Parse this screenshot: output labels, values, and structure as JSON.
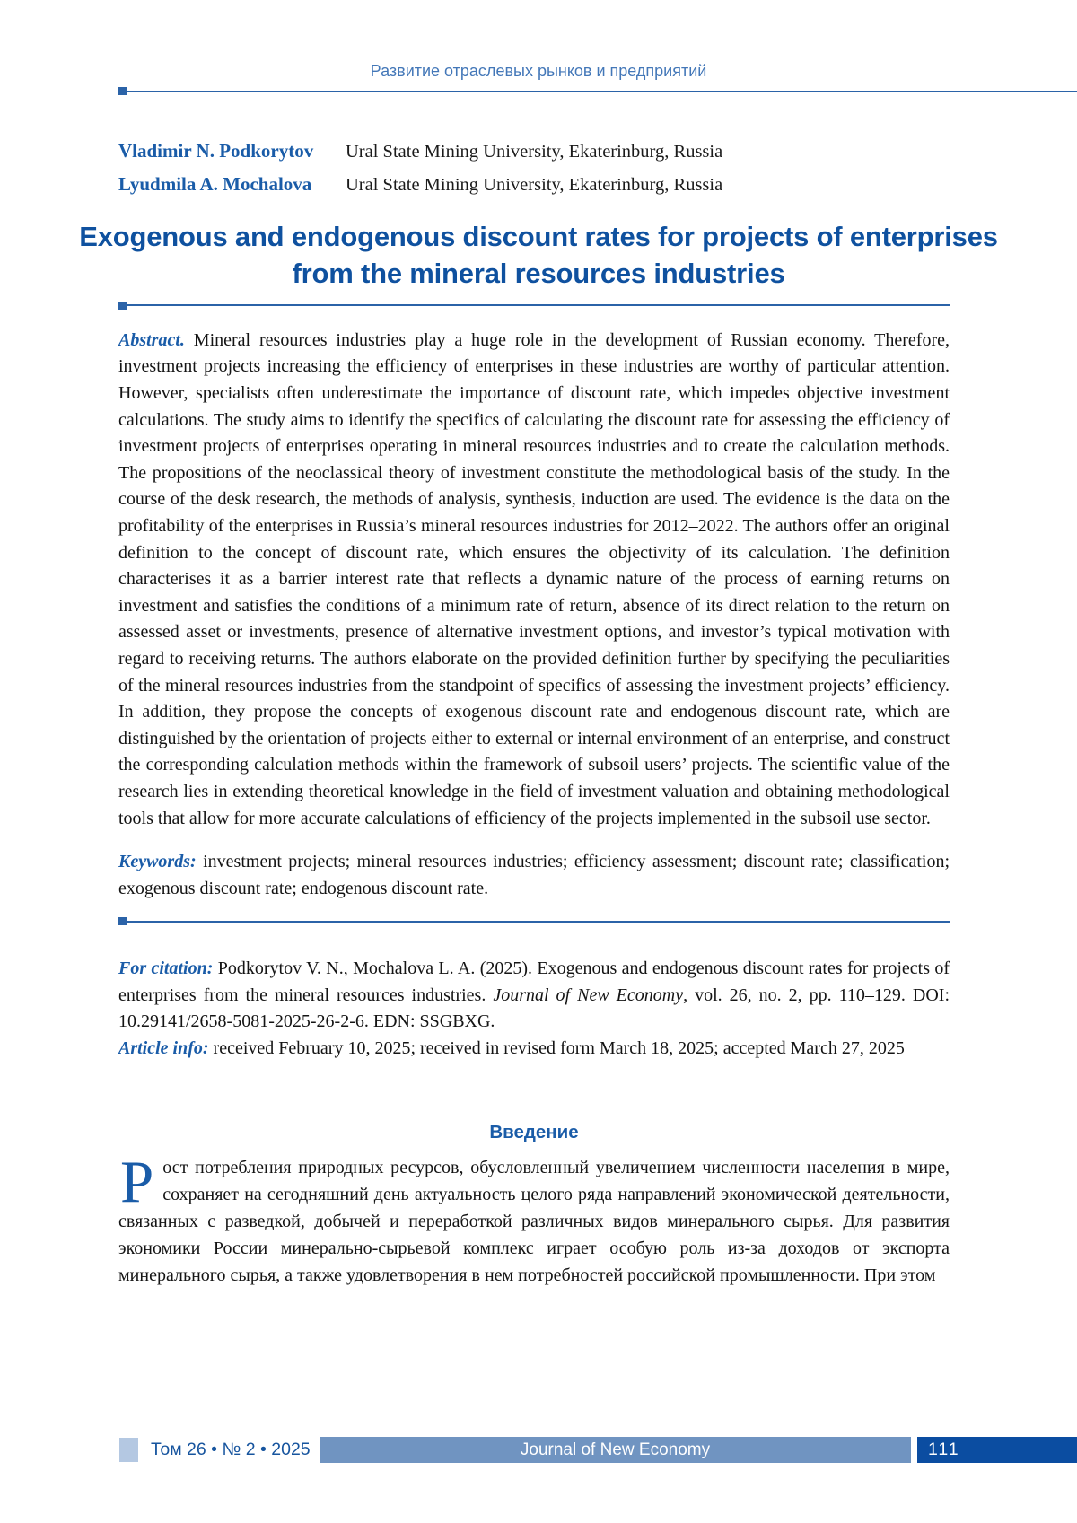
{
  "running_head": "Развитие отраслевых рынков и предприятий",
  "authors": [
    {
      "name": "Vladimir N. Podkorytov",
      "affiliation": "Ural State Mining University, Ekaterinburg, Russia"
    },
    {
      "name": "Lyudmila A. Mochalova",
      "affiliation": "Ural State Mining University, Ekaterinburg, Russia"
    }
  ],
  "title": "Exogenous and endogenous discount rates for projects of enterprises from the mineral resources industries",
  "abstract": {
    "label": "Abstract.",
    "text": "Mineral resources industries play a huge role in the development of Russian economy. Therefore, investment projects increasing the efficiency of enterprises in these industries are worthy of particular attention. However, specialists often underestimate the importance of discount rate, which impedes objective investment calculations. The study aims to identify the specifics of calculating the discount rate for assessing the efficiency of investment projects of enterprises operating in mineral resources industries and to create the calculation methods. The propositions of the neoclassical theory of investment constitute the methodological basis of the study. In the course of the desk research, the methods of analysis, synthesis, induction are used. The evidence is the data on the profitability of the enterprises in Russia’s mineral resources industries for 2012–2022. The authors offer an original definition to the concept of discount rate, which ensures the objectivity of its calculation. The definition characterises it as a barrier interest rate that reflects a dynamic nature of the process of earning returns on investment and satisfies the conditions of a minimum rate of return, absence of its direct relation to the return on assessed asset or investments, presence of alternative investment options, and investor’s typical motivation with regard to receiving returns. The authors elaborate on the provided definition further by specifying the peculiarities of the mineral resources industries from the standpoint of specifics of assessing the investment projects’ efficiency. In addition, they propose the concepts of exogenous discount rate and endogenous discount rate, which are distinguished by the orientation of projects either to external or internal environment of an enterprise, and construct the corresponding calculation methods within the framework of subsoil users’ projects. The scientific value of the research lies in extending theoretical knowledge in the field of investment valuation and obtaining methodological tools that allow for more accurate calculations of efficiency of the projects implemented in the subsoil use sector."
  },
  "keywords": {
    "label": "Keywords:",
    "text": "investment projects; mineral resources industries; efficiency assessment; discount rate; classification; exogenous discount rate; endogenous discount rate."
  },
  "citation": {
    "label": "For citation:",
    "text_before_journal": "Podkorytov V. N., Mochalova L. A. (2025). Exogenous and endogenous discount rates for projects of enterprises from the mineral resources industries.",
    "journal": "Journal of New Economy",
    "text_after_journal": ", vol. 26, no. 2, pp. 110–129. DOI: 10.29141/2658-5081-2025-26-2-6. EDN: SSGBXG."
  },
  "article_info": {
    "label": "Article info:",
    "text": "received February 10, 2025; received in revised form March 18, 2025; accepted March 27, 2025"
  },
  "introduction": {
    "heading": "Введение",
    "dropcap": "Р",
    "paragraph": "ост потребления природных ресурсов, обусловленный увеличением численности населения в мире, сохраняет на сегодняшний день актуальность целого ряда направлений экономической деятельности, связанных с разведкой, добычей и переработкой различных видов минерального сырья. Для развития экономики России минерально-сырьевой комплекс играет особую роль из-за доходов от экспорта минерального сырья, а также удовлетворения в нем потребностей российской промышленности. При этом"
  },
  "footer": {
    "volume_info": "Том 26 • № 2 • 2025",
    "journal_name": "Journal of New Economy",
    "page_number": "111"
  },
  "colors": {
    "accent_blue": "#1a5ca8",
    "title_blue": "#0f519f",
    "running_head_blue": "#4377b8",
    "rule_blue": "#2b63a8",
    "footer_bar_blue": "#7094c1",
    "footer_page_bg": "#0b4da1",
    "footer_square_light": "#b4c8e2"
  }
}
